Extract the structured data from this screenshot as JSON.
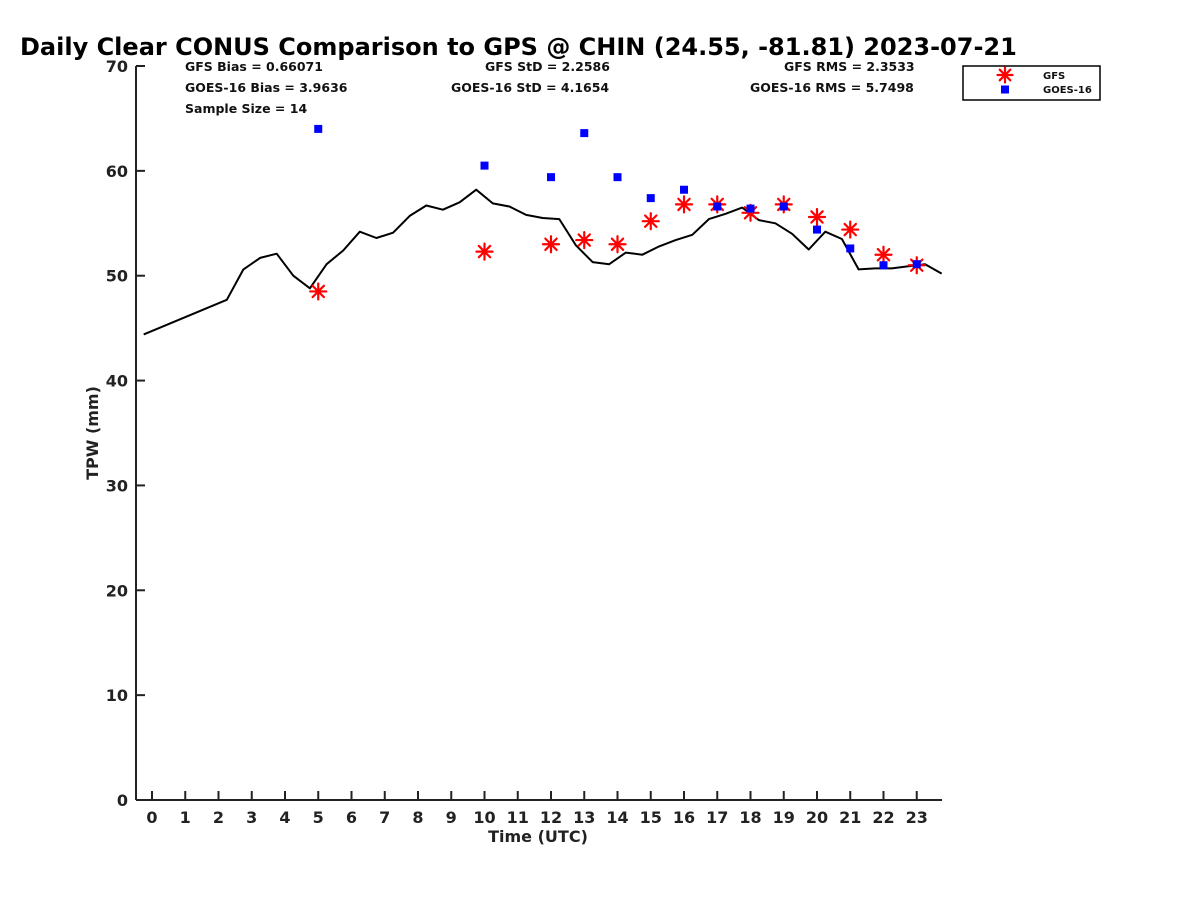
{
  "chart_data": {
    "type": "scatter",
    "title": "Daily Clear CONUS Comparison to GPS @ CHIN (24.55, -81.81) 2023-07-21",
    "xlabel": "Time (UTC)",
    "ylabel": "TPW (mm)",
    "xlim": [
      -0.5,
      23.75
    ],
    "ylim": [
      0,
      70
    ],
    "xticks": [
      0,
      1,
      2,
      3,
      4,
      5,
      6,
      7,
      8,
      9,
      10,
      11,
      12,
      13,
      14,
      15,
      16,
      17,
      18,
      19,
      20,
      21,
      22,
      23
    ],
    "yticks": [
      0,
      10,
      20,
      30,
      40,
      50,
      60,
      70
    ],
    "legend_position": "top-right, outside plot",
    "legend": [
      "GFS",
      "GOES-16"
    ],
    "stats": {
      "gfs_bias": "GFS Bias = 0.66071",
      "goes_bias": "GOES-16 Bias = 3.9636",
      "sample_size": "Sample Size = 14",
      "gfs_std": "GFS StD = 2.2586",
      "goes_std": "GOES-16 StD = 4.1654",
      "gfs_rms": "GFS RMS = 2.3533",
      "goes_rms": "GOES-16 RMS = 5.7498"
    },
    "series": [
      {
        "name": "GPS",
        "kind": "line",
        "color": "#000000",
        "x": [
          -0.25,
          2.25,
          2.75,
          3.25,
          3.75,
          4.25,
          4.75,
          5.25,
          5.75,
          6.25,
          6.75,
          7.25,
          7.75,
          8.25,
          8.75,
          9.25,
          9.75,
          10.25,
          10.75,
          11.25,
          11.75,
          12.25,
          12.75,
          13.25,
          13.75,
          14.25,
          14.75,
          15.25,
          15.75,
          16.25,
          16.75,
          17.25,
          17.75,
          18.25,
          18.75,
          19.25,
          19.75,
          20.25,
          20.75,
          21.25,
          21.75,
          22.25,
          22.75,
          23.25,
          23.75
        ],
        "y": [
          44.4,
          47.7,
          50.6,
          51.7,
          52.1,
          50.0,
          48.8,
          51.1,
          52.4,
          54.2,
          53.6,
          54.1,
          55.7,
          56.7,
          56.3,
          57.0,
          58.2,
          56.9,
          56.6,
          55.8,
          55.5,
          55.4,
          52.9,
          51.3,
          51.1,
          52.2,
          52.0,
          52.8,
          53.4,
          53.9,
          55.4,
          55.9,
          56.5,
          55.3,
          55.0,
          54.0,
          52.5,
          54.2,
          53.5,
          50.6,
          50.7,
          50.7,
          50.9,
          51.1,
          50.2
        ]
      },
      {
        "name": "GFS",
        "kind": "marker",
        "marker": "asterisk",
        "color": "#ff0000",
        "x": [
          5,
          10,
          12,
          13,
          14,
          15,
          16,
          17,
          18,
          19,
          20,
          21,
          22,
          23
        ],
        "y": [
          48.5,
          52.3,
          53.0,
          53.4,
          53.0,
          55.2,
          56.8,
          56.8,
          56.0,
          56.8,
          55.6,
          54.4,
          52.0,
          51.0
        ]
      },
      {
        "name": "GOES-16",
        "kind": "marker",
        "marker": "square",
        "color": "#0000ff",
        "x": [
          5,
          10,
          12,
          13,
          14,
          15,
          16,
          17,
          18,
          19,
          20,
          21,
          22,
          23
        ],
        "y": [
          64.0,
          60.5,
          59.4,
          63.6,
          59.4,
          57.4,
          58.2,
          56.6,
          56.4,
          56.6,
          54.4,
          52.6,
          51.0,
          51.1
        ]
      }
    ]
  }
}
